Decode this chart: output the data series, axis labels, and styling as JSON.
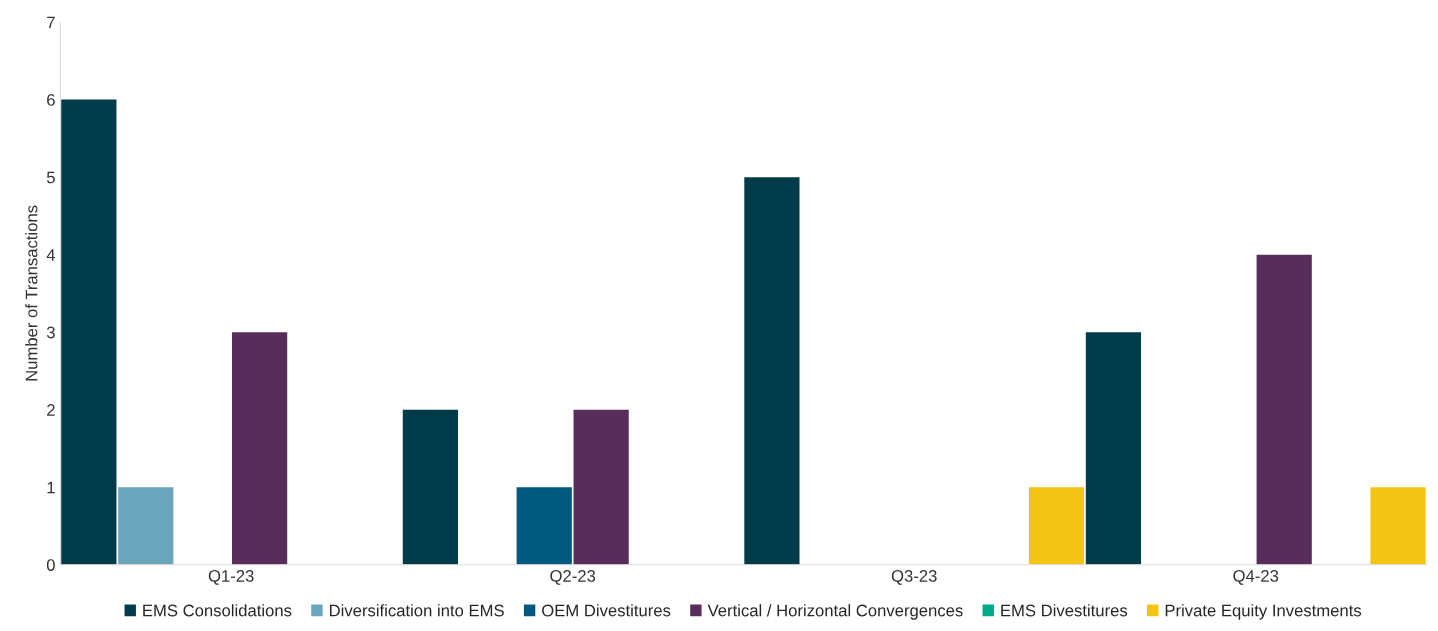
{
  "chart_data": {
    "type": "bar",
    "ylabel": "Number of Transactions",
    "categories": [
      "Q1-23",
      "Q2-23",
      "Q3-23",
      "Q4-23"
    ],
    "series": [
      {
        "name": "EMS Consolidations",
        "color": "#003b4a",
        "values": [
          6,
          2,
          5,
          3
        ]
      },
      {
        "name": "Diversification into EMS",
        "color": "#6aa5bb",
        "values": [
          1,
          0,
          0,
          0
        ]
      },
      {
        "name": "OEM Divestitures",
        "color": "#005a80",
        "values": [
          0,
          1,
          0,
          0
        ]
      },
      {
        "name": "Vertical / Horizontal Convergences",
        "color": "#582d5c",
        "values": [
          3,
          2,
          0,
          4
        ]
      },
      {
        "name": "EMS Divestitures",
        "color": "#00a886",
        "values": [
          0,
          0,
          0,
          0
        ]
      },
      {
        "name": "Private Equity Investments",
        "color": "#f2c414",
        "values": [
          0,
          0,
          1,
          1
        ]
      }
    ],
    "ylim": [
      0,
      7
    ],
    "yticks": [
      0,
      1,
      2,
      3,
      4,
      5,
      6,
      7
    ],
    "grid": false,
    "legend": "bottom"
  }
}
